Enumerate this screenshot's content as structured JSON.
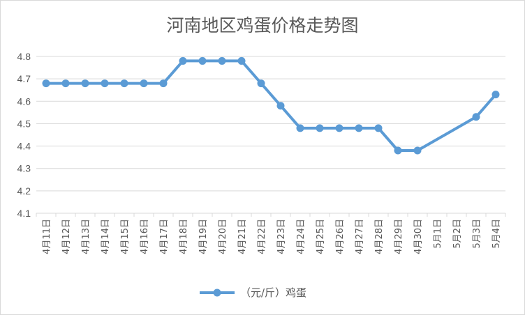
{
  "chart_data": {
    "type": "line",
    "title": "河南地区鸡蛋价格走势图",
    "xlabel": "",
    "ylabel": "",
    "ylim": [
      4.1,
      4.8
    ],
    "yticks": [
      "4.1",
      "4.2",
      "4.3",
      "4.4",
      "4.5",
      "4.6",
      "4.7",
      "4.8"
    ],
    "grid": true,
    "legend_position": "bottom",
    "categories": [
      "4月11日",
      "4月12日",
      "4月13日",
      "4月14日",
      "4月15日",
      "4月16日",
      "4月17日",
      "4月18日",
      "4月19日",
      "4月20日",
      "4月21日",
      "4月22日",
      "4月23日",
      "4月24日",
      "4月25日",
      "4月26日",
      "4月27日",
      "4月28日",
      "4月29日",
      "4月30日",
      "5月1日",
      "5月2日",
      "5月3日",
      "5月4日"
    ],
    "series": [
      {
        "name": "（元/斤）鸡蛋",
        "color": "#5b9bd5",
        "values": [
          4.68,
          4.68,
          4.68,
          4.68,
          4.68,
          4.68,
          4.68,
          4.78,
          4.78,
          4.78,
          4.78,
          4.68,
          4.58,
          4.48,
          4.48,
          4.48,
          4.48,
          4.48,
          4.38,
          4.38,
          null,
          null,
          4.53,
          4.63
        ]
      }
    ]
  }
}
